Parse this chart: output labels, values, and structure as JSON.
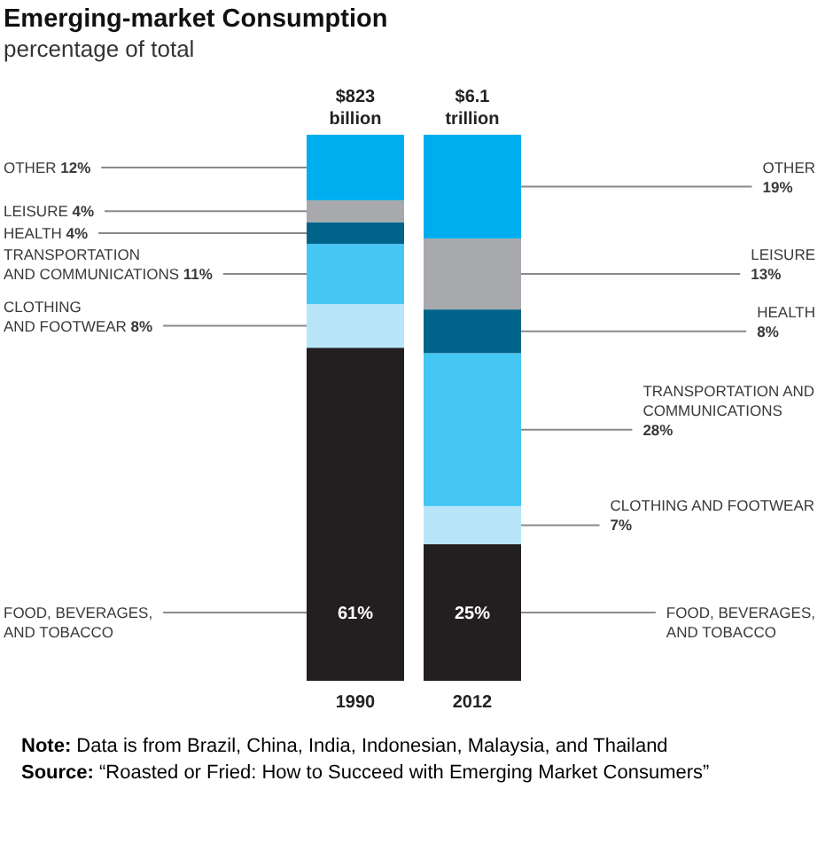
{
  "chart_data": {
    "type": "bar",
    "stacked": true,
    "title": "Emerging-market Consumption",
    "subtitle": "percentage of total",
    "categories": [
      "1990",
      "2012"
    ],
    "series": [
      {
        "name": "FOOD, BEVERAGES, AND TOBACCO",
        "color": "#231f20",
        "values": [
          61,
          25
        ],
        "value_labels": [
          "61%",
          "25%"
        ]
      },
      {
        "name": "CLOTHING AND FOOTWEAR",
        "color": "#b9e5f8",
        "values": [
          8,
          7
        ],
        "value_labels": [
          "8%",
          "7%"
        ]
      },
      {
        "name": "TRANSPORTATION AND COMMUNICATIONS",
        "color": "#45c6f3",
        "values": [
          11,
          28
        ],
        "value_labels": [
          "11%",
          "28%"
        ]
      },
      {
        "name": "HEALTH",
        "color": "#00648a",
        "values": [
          4,
          8
        ],
        "value_labels": [
          "4%",
          "8%"
        ]
      },
      {
        "name": "LEISURE",
        "color": "#a7a9ac",
        "values": [
          4,
          13
        ],
        "value_labels": [
          "4%",
          "13%"
        ]
      },
      {
        "name": "OTHER",
        "color": "#00aeef",
        "values": [
          12,
          19
        ],
        "value_labels": [
          "12%",
          "19%"
        ]
      }
    ],
    "annotations": [
      {
        "text": "$823 billion",
        "x": "1990",
        "y": 100
      },
      {
        "text": "$6.1 trillion",
        "x": "2012",
        "y": 100
      },
      "Note: Data is from Brazil, China, India, Indonesian, Malaysia, and Thailand",
      "Source: “Roasted or Fried: How to Succeed with Emerging Market Consumers”"
    ]
  }
}
